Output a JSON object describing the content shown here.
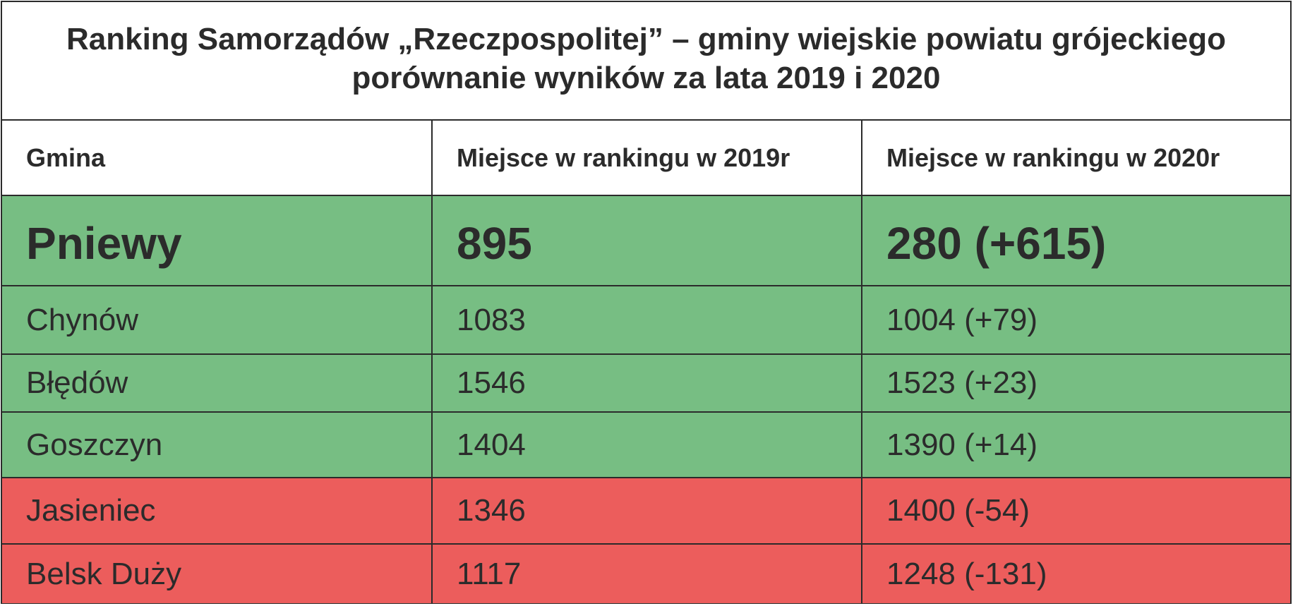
{
  "title": {
    "line1": "Ranking Samorządów „Rzeczpospolitej” – gminy wiejskie powiatu grójeckiego",
    "line2": "porównanie wyników za lata 2019 i 2020"
  },
  "columns": [
    "Gmina",
    "Miejsce w rankingu w 2019r",
    "Miejsce w rankingu w 2020r"
  ],
  "colors": {
    "improved": "#77be83",
    "worsened": "#ec5d5c",
    "border": "#2b2b2b",
    "text": "#2b2b2b"
  },
  "rows": [
    {
      "gmina": "Pniewy",
      "rank2019": "895",
      "rank2020": "280 (+615)",
      "status": "improved"
    },
    {
      "gmina": "Chynów",
      "rank2019": "1083",
      "rank2020": "1004 (+79)",
      "status": "improved"
    },
    {
      "gmina": "Błędów",
      "rank2019": "1546",
      "rank2020": "1523 (+23)",
      "status": "improved"
    },
    {
      "gmina": "Goszczyn",
      "rank2019": "1404",
      "rank2020": "1390 (+14)",
      "status": "improved"
    },
    {
      "gmina": "Jasieniec",
      "rank2019": "1346",
      "rank2020": "1400 (-54)",
      "status": "worsened"
    },
    {
      "gmina": "Belsk Duży",
      "rank2019": "1117",
      "rank2020": "1248 (-131)",
      "status": "worsened"
    }
  ],
  "chart_data": {
    "type": "table",
    "title": "Ranking Samorządów „Rzeczpospolitej” – gminy wiejskie powiatu grójeckiego porównanie wyników za lata 2019 i 2020",
    "columns": [
      "Gmina",
      "Miejsce w rankingu w 2019r",
      "Miejsce w rankingu w 2020r"
    ],
    "categories": [
      "Pniewy",
      "Chynów",
      "Błędów",
      "Goszczyn",
      "Jasieniec",
      "Belsk Duży"
    ],
    "series": [
      {
        "name": "Miejsce w rankingu w 2019r",
        "values": [
          895,
          1083,
          1546,
          1404,
          1346,
          1117
        ]
      },
      {
        "name": "Miejsce w rankingu w 2020r",
        "values": [
          280,
          1004,
          1523,
          1390,
          1400,
          1248
        ]
      }
    ],
    "change": [
      615,
      79,
      23,
      14,
      -54,
      -131
    ]
  }
}
